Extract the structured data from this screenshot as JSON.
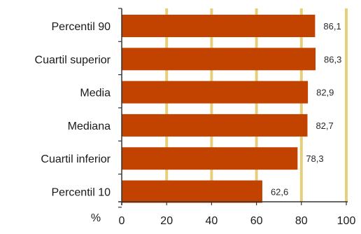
{
  "chart_data": {
    "type": "bar",
    "orientation": "horizontal",
    "categories": [
      "Percentil 90",
      "Cuartil superior",
      "Media",
      "Mediana",
      "Cuartil inferior",
      "Percentil 10"
    ],
    "values": [
      86.1,
      86.3,
      82.9,
      82.7,
      78.3,
      62.6
    ],
    "value_labels": [
      "86,1",
      "86,3",
      "82,9",
      "82,7",
      "78,3",
      "62,6"
    ],
    "x_ticks": [
      0,
      20,
      40,
      60,
      80,
      100
    ],
    "x_tick_labels": [
      "0",
      "20",
      "40",
      "60",
      "80",
      "100"
    ],
    "xlim": [
      0,
      100
    ],
    "unit_label": "%",
    "grid": "vertical",
    "legend": "none",
    "colors": {
      "bar": "#c24200",
      "grid": "#e6cf7a",
      "axis": "#333333"
    }
  }
}
